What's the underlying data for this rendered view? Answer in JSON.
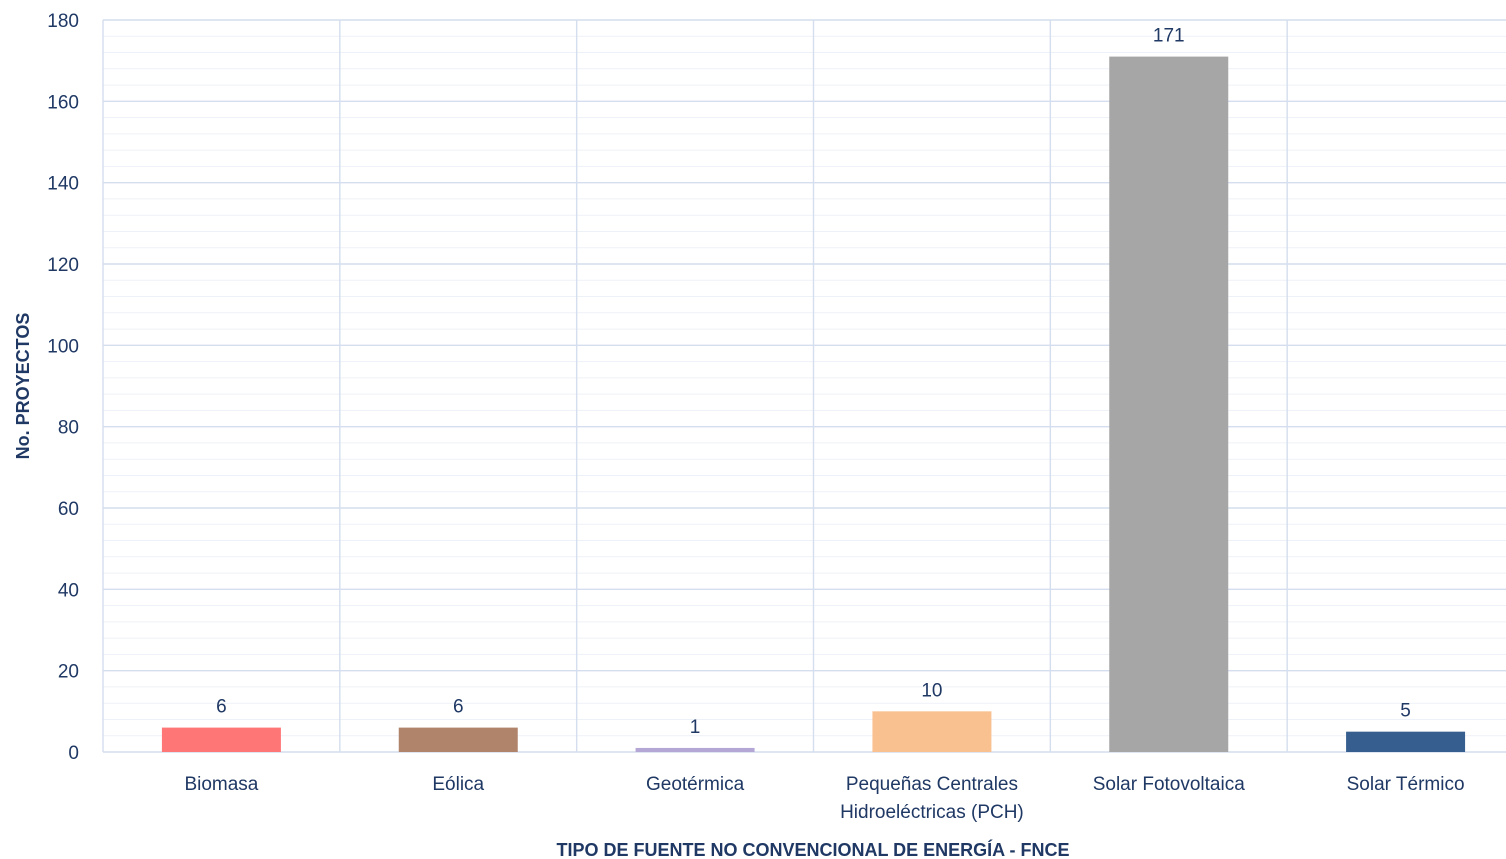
{
  "chart_data": {
    "type": "bar",
    "categories": [
      "Biomasa",
      "Eólica",
      "Geotérmica",
      [
        "Pequeñas Centrales",
        "Hidroeléctricas (PCH)"
      ],
      "Solar Fotovoltaica",
      "Solar Térmico"
    ],
    "values": [
      6,
      6,
      1,
      10,
      171,
      5
    ],
    "data_labels": [
      "6",
      "6",
      "1",
      "10",
      "171",
      "5"
    ],
    "colors": [
      "#ff7676",
      "#b0846a",
      "#b4a7d6",
      "#f9c190",
      "#a6a6a6",
      "#365e8f"
    ],
    "ylim": [
      0,
      180
    ],
    "yticks": [
      0,
      20,
      40,
      60,
      80,
      100,
      120,
      140,
      160,
      180
    ],
    "title": "",
    "xlabel": "TIPO DE FUENTE NO CONVENCIONAL DE ENERGÍA - FNCE",
    "ylabel": "No. PROYECTOS",
    "grid": true,
    "legend": "none"
  }
}
